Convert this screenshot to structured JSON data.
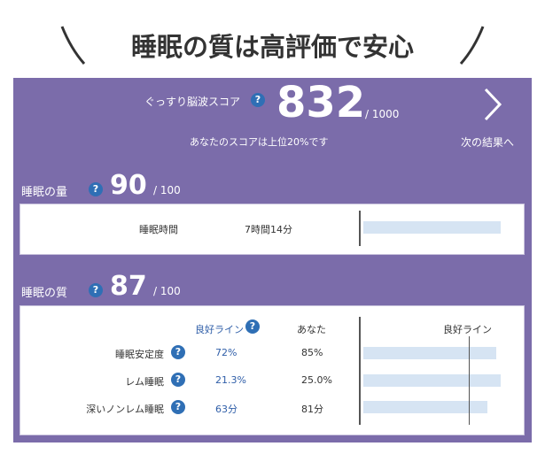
{
  "header": {
    "title": "睡眠の質は高評価で安心"
  },
  "help_icon": "?",
  "score": {
    "label": "ぐっすり脳波スコア",
    "value": 832,
    "max": "/ 1000",
    "note": "あなたのスコアは上位20%です",
    "next": "次の結果へ"
  },
  "quantity": {
    "label": "睡眠の量",
    "value": 90,
    "max": "/ 100",
    "row": {
      "name": "睡眠時間",
      "you": "7時間14分"
    }
  },
  "quality": {
    "label": "睡眠の質",
    "value": 87,
    "max": "/ 100",
    "headers": {
      "good": "良好ライン",
      "you": "あなた",
      "chart": "良好ライン"
    },
    "rows": [
      [
        "睡眠安定度",
        "72%",
        "85%"
      ],
      [
        "レム睡眠",
        "21.3%",
        "25.0%"
      ],
      [
        "深いノンレム睡眠",
        "63分",
        "81分"
      ]
    ]
  }
}
